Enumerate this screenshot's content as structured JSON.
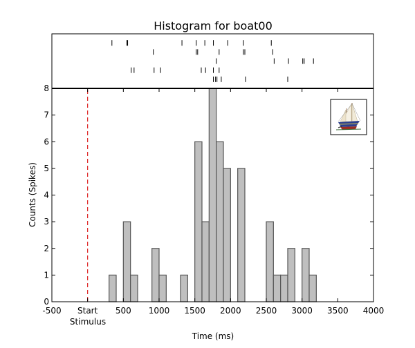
{
  "chart_data": {
    "type": "bar",
    "title": "Histogram for boat00",
    "xlabel": "Time (ms)",
    "ylabel": "Counts (Spikes)",
    "xlim": [
      -500,
      4000
    ],
    "ylim": [
      0,
      8
    ],
    "xticks": [
      -500,
      0,
      500,
      1000,
      1500,
      2000,
      2500,
      3000,
      3500,
      4000
    ],
    "xtick_labels": [
      "-500",
      "Start",
      "500",
      "1000",
      "1500",
      "2000",
      "2500",
      "3000",
      "3500",
      "4000"
    ],
    "yticks": [
      0,
      1,
      2,
      3,
      4,
      5,
      6,
      7,
      8
    ],
    "ytick_labels": [
      "0",
      "1",
      "2",
      "3",
      "4",
      "5",
      "6",
      "7",
      "8"
    ],
    "stimulus_label": "Stimulus",
    "stimulus_time": 0,
    "bin_width": 100,
    "bins": [
      {
        "start": 300,
        "count": 1
      },
      {
        "start": 500,
        "count": 3
      },
      {
        "start": 600,
        "count": 1
      },
      {
        "start": 900,
        "count": 2
      },
      {
        "start": 1000,
        "count": 1
      },
      {
        "start": 1300,
        "count": 1
      },
      {
        "start": 1500,
        "count": 6
      },
      {
        "start": 1600,
        "count": 3
      },
      {
        "start": 1700,
        "count": 8
      },
      {
        "start": 1800,
        "count": 6
      },
      {
        "start": 1900,
        "count": 5
      },
      {
        "start": 2100,
        "count": 5
      },
      {
        "start": 2500,
        "count": 3
      },
      {
        "start": 2600,
        "count": 1
      },
      {
        "start": 2700,
        "count": 1
      },
      {
        "start": 2800,
        "count": 2
      },
      {
        "start": 3000,
        "count": 2
      },
      {
        "start": 3100,
        "count": 1
      }
    ],
    "raster_trials": [
      [
        340,
        550,
        560,
        1320,
        1520,
        1640,
        1760,
        1960,
        2180,
        2570
      ],
      [
        920,
        1520,
        1540,
        1840,
        2180,
        2200,
        2590
      ],
      [
        1800,
        2610,
        2810,
        3010,
        3030,
        3160
      ],
      [
        610,
        650,
        930,
        1020,
        1590,
        1650,
        1760,
        1840
      ],
      [
        1760,
        1790,
        1810,
        1870,
        2210,
        2800
      ]
    ],
    "fill_color": "#bfbfbf",
    "edge_color": "#555555",
    "stimulus_color": "#dd2222",
    "image_icon": "boat-image"
  }
}
